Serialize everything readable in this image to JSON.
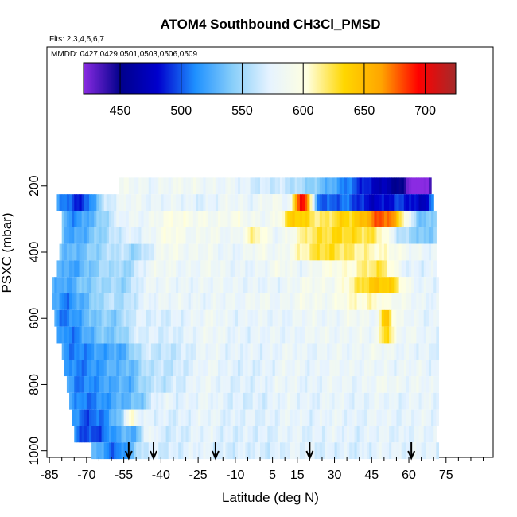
{
  "chart_data": {
    "type": "heatmap",
    "title": "ATOM4 Southbound CH3Cl_PMSD",
    "flights_note": "Flts: 2,3,4,5,6,7",
    "dates_note": "MMDD: 0427,0429,0501,0503,0506,0509",
    "xlabel": "Latitude (deg N)",
    "ylabel": "PSXC (mbar)",
    "x_ticks": [
      -85,
      -70,
      -55,
      -40,
      -25,
      -10,
      5,
      15,
      30,
      45,
      60,
      75
    ],
    "x_tick_labels": [
      "-85",
      "-70",
      "-55",
      "-40",
      "-25",
      "-10",
      "5",
      "15",
      "30",
      "45",
      "60",
      "75"
    ],
    "xlim": [
      -86,
      94
    ],
    "y_ticks": [
      200,
      400,
      600,
      800,
      1000
    ],
    "y_tick_labels": [
      "200",
      "400",
      "600",
      "800",
      "1000"
    ],
    "ylim": [
      1020,
      -220
    ],
    "colorbar": {
      "min": 420,
      "max": 725,
      "ticks": [
        450,
        500,
        550,
        600,
        650,
        700
      ],
      "tick_labels": [
        "450",
        "500",
        "550",
        "600",
        "650",
        "700"
      ],
      "colors": [
        "#8a2be2",
        "#00008b",
        "#0000cd",
        "#1e90ff",
        "#87cefa",
        "#e6f3ff",
        "#ffffe0",
        "#ffd700",
        "#ffa500",
        "#ff0000",
        "#a52a2a"
      ]
    },
    "levels": [
      {
        "p": 200,
        "lat_start": -57,
        "lat_end": 69,
        "base": 585,
        "hot": [
          [
            -44,
            4,
            -8
          ],
          [
            -18,
            4,
            -5
          ],
          [
            -2,
            5,
            -10
          ],
          [
            20,
            15,
            -25
          ],
          [
            40,
            12,
            -55
          ],
          [
            55,
            10,
            -80
          ],
          [
            66,
            6,
            -120
          ]
        ]
      },
      {
        "p": 250,
        "lat_start": -82,
        "lat_end": 70,
        "base": 568,
        "hot": [
          [
            -77,
            6,
            -60
          ],
          [
            -70,
            4,
            -40
          ],
          [
            -52,
            5,
            15
          ],
          [
            -35,
            6,
            10
          ],
          [
            -12,
            5,
            15
          ],
          [
            5,
            5,
            20
          ],
          [
            16,
            2,
            105
          ],
          [
            19,
            2,
            95
          ],
          [
            25,
            5,
            -45
          ],
          [
            38,
            10,
            -50
          ],
          [
            50,
            8,
            -60
          ],
          [
            62,
            5,
            -40
          ],
          [
            67,
            4,
            -55
          ]
        ]
      },
      {
        "p": 300,
        "lat_start": -80,
        "lat_end": 71,
        "base": 573,
        "hot": [
          [
            -76,
            5,
            -50
          ],
          [
            -66,
            6,
            -30
          ],
          [
            -55,
            5,
            10
          ],
          [
            -35,
            6,
            25
          ],
          [
            -22,
            5,
            15
          ],
          [
            -10,
            4,
            20
          ],
          [
            0,
            5,
            10
          ],
          [
            13,
            4,
            50
          ],
          [
            20,
            5,
            40
          ],
          [
            32,
            5,
            50
          ],
          [
            45,
            6,
            75
          ],
          [
            53,
            5,
            65
          ],
          [
            66,
            5,
            -40
          ]
        ]
      },
      {
        "p": 350,
        "lat_start": -80,
        "lat_end": 71,
        "base": 573,
        "hot": [
          [
            -76,
            5,
            -45
          ],
          [
            -66,
            6,
            -25
          ],
          [
            -36,
            5,
            25
          ],
          [
            -20,
            5,
            15
          ],
          [
            -2,
            4,
            40
          ],
          [
            20,
            6,
            40
          ],
          [
            32,
            6,
            45
          ],
          [
            45,
            7,
            45
          ],
          [
            57,
            4,
            -25
          ],
          [
            67,
            4,
            -35
          ]
        ]
      },
      {
        "p": 400,
        "lat_start": -81,
        "lat_end": 71,
        "base": 575,
        "hot": [
          [
            -77,
            5,
            -40
          ],
          [
            -66,
            6,
            -25
          ],
          [
            -50,
            4,
            -25
          ],
          [
            -36,
            5,
            15
          ],
          [
            -22,
            4,
            10
          ],
          [
            0,
            4,
            15
          ],
          [
            15,
            4,
            20
          ],
          [
            24,
            5,
            35
          ],
          [
            35,
            8,
            40
          ],
          [
            50,
            6,
            20
          ],
          [
            60,
            5,
            5
          ]
        ]
      },
      {
        "p": 450,
        "lat_start": -82,
        "lat_end": 71,
        "base": 575,
        "hot": [
          [
            -78,
            5,
            -45
          ],
          [
            -68,
            6,
            -30
          ],
          [
            -54,
            4,
            -25
          ],
          [
            -40,
            6,
            10
          ],
          [
            -20,
            4,
            10
          ],
          [
            8,
            4,
            15
          ],
          [
            28,
            5,
            20
          ],
          [
            42,
            6,
            35
          ],
          [
            50,
            4,
            30
          ],
          [
            62,
            5,
            -5
          ]
        ]
      },
      {
        "p": 500,
        "lat_start": -84,
        "lat_end": 72,
        "base": 575,
        "hot": [
          [
            -80,
            5,
            -50
          ],
          [
            -68,
            6,
            -30
          ],
          [
            -55,
            4,
            -25
          ],
          [
            -40,
            6,
            5
          ],
          [
            -18,
            5,
            5
          ],
          [
            20,
            5,
            15
          ],
          [
            38,
            6,
            30
          ],
          [
            47,
            5,
            50
          ],
          [
            54,
            4,
            35
          ]
        ]
      },
      {
        "p": 550,
        "lat_start": -84,
        "lat_end": 72,
        "base": 575,
        "hot": [
          [
            -80,
            5,
            -55
          ],
          [
            -70,
            6,
            -35
          ],
          [
            -55,
            4,
            -20
          ],
          [
            -35,
            5,
            5
          ],
          [
            -14,
            4,
            5
          ],
          [
            0,
            4,
            10
          ],
          [
            18,
            5,
            15
          ],
          [
            36,
            6,
            25
          ],
          [
            47,
            5,
            25
          ],
          [
            58,
            4,
            10
          ]
        ]
      },
      {
        "p": 600,
        "lat_start": -83,
        "lat_end": 72,
        "base": 573,
        "hot": [
          [
            -80,
            5,
            -55
          ],
          [
            -70,
            6,
            -35
          ],
          [
            -58,
            4,
            -25
          ],
          [
            -40,
            5,
            -5
          ],
          [
            -20,
            5,
            10
          ],
          [
            0,
            4,
            5
          ],
          [
            20,
            5,
            10
          ],
          [
            38,
            5,
            15
          ],
          [
            51,
            2,
            70
          ],
          [
            58,
            4,
            10
          ]
        ]
      },
      {
        "p": 650,
        "lat_start": -82,
        "lat_end": 72,
        "base": 573,
        "hot": [
          [
            -78,
            5,
            -55
          ],
          [
            -68,
            6,
            -35
          ],
          [
            -57,
            4,
            -25
          ],
          [
            -38,
            5,
            -5
          ],
          [
            -20,
            5,
            10
          ],
          [
            5,
            4,
            5
          ],
          [
            24,
            5,
            10
          ],
          [
            40,
            5,
            10
          ],
          [
            51,
            2,
            65
          ],
          [
            60,
            4,
            10
          ]
        ]
      },
      {
        "p": 700,
        "lat_start": -80,
        "lat_end": 72,
        "base": 570,
        "hot": [
          [
            -76,
            6,
            -55
          ],
          [
            -64,
            6,
            -40
          ],
          [
            -55,
            4,
            -30
          ],
          [
            -38,
            5,
            -10
          ],
          [
            -20,
            4,
            10
          ],
          [
            -5,
            4,
            5
          ],
          [
            12,
            5,
            10
          ],
          [
            30,
            5,
            10
          ],
          [
            47,
            6,
            15
          ],
          [
            62,
            5,
            5
          ]
        ]
      },
      {
        "p": 750,
        "lat_start": -79,
        "lat_end": 72,
        "base": 570,
        "hot": [
          [
            -75,
            6,
            -55
          ],
          [
            -63,
            6,
            -40
          ],
          [
            -52,
            4,
            -30
          ],
          [
            -38,
            5,
            -10
          ],
          [
            -20,
            4,
            10
          ],
          [
            -5,
            4,
            0
          ],
          [
            12,
            5,
            10
          ],
          [
            30,
            5,
            10
          ],
          [
            45,
            6,
            10
          ],
          [
            62,
            5,
            10
          ]
        ]
      },
      {
        "p": 800,
        "lat_start": -78,
        "lat_end": 72,
        "base": 570,
        "hot": [
          [
            -74,
            6,
            -55
          ],
          [
            -62,
            6,
            -40
          ],
          [
            -52,
            4,
            -30
          ],
          [
            -40,
            5,
            -10
          ],
          [
            -22,
            4,
            10
          ],
          [
            -8,
            4,
            0
          ],
          [
            10,
            5,
            10
          ],
          [
            30,
            5,
            10
          ],
          [
            50,
            6,
            15
          ],
          [
            65,
            5,
            10
          ]
        ]
      },
      {
        "p": 850,
        "lat_start": -77,
        "lat_end": 72,
        "base": 568,
        "hot": [
          [
            -72,
            6,
            -55
          ],
          [
            -60,
            6,
            -40
          ],
          [
            -49,
            4,
            -25
          ],
          [
            -40,
            4,
            10
          ],
          [
            -22,
            5,
            10
          ],
          [
            -10,
            4,
            0
          ],
          [
            12,
            5,
            10
          ],
          [
            30,
            5,
            10
          ],
          [
            48,
            5,
            10
          ],
          [
            65,
            5,
            10
          ]
        ]
      },
      {
        "p": 900,
        "lat_start": -76,
        "lat_end": 72,
        "base": 568,
        "hot": [
          [
            -72,
            6,
            -55
          ],
          [
            -62,
            6,
            -40
          ],
          [
            -52,
            2,
            40
          ],
          [
            -45,
            5,
            5
          ],
          [
            -22,
            5,
            10
          ],
          [
            -5,
            4,
            5
          ],
          [
            12,
            5,
            10
          ],
          [
            30,
            5,
            10
          ],
          [
            48,
            5,
            10
          ],
          [
            65,
            5,
            10
          ]
        ]
      },
      {
        "p": 950,
        "lat_start": -75,
        "lat_end": 71,
        "base": 566,
        "hot": [
          [
            -72,
            6,
            -55
          ],
          [
            -62,
            6,
            -45
          ],
          [
            -50,
            4,
            -30
          ],
          [
            -45,
            2,
            35
          ],
          [
            -22,
            5,
            10
          ],
          [
            -5,
            4,
            5
          ],
          [
            12,
            5,
            10
          ],
          [
            30,
            5,
            10
          ],
          [
            48,
            5,
            10
          ],
          [
            65,
            5,
            10
          ]
        ]
      },
      {
        "p": 1000,
        "lat_start": -68,
        "lat_end": 72,
        "base": 565,
        "hot": [
          [
            -62,
            5,
            -45
          ],
          [
            -55,
            4,
            -35
          ],
          [
            -45,
            3,
            5
          ],
          [
            -25,
            5,
            10
          ],
          [
            -5,
            4,
            5
          ],
          [
            15,
            5,
            10
          ],
          [
            32,
            5,
            5
          ],
          [
            50,
            5,
            10
          ],
          [
            65,
            5,
            10
          ]
        ]
      }
    ],
    "arrows": [
      -53,
      -43,
      -18,
      20,
      61
    ]
  }
}
